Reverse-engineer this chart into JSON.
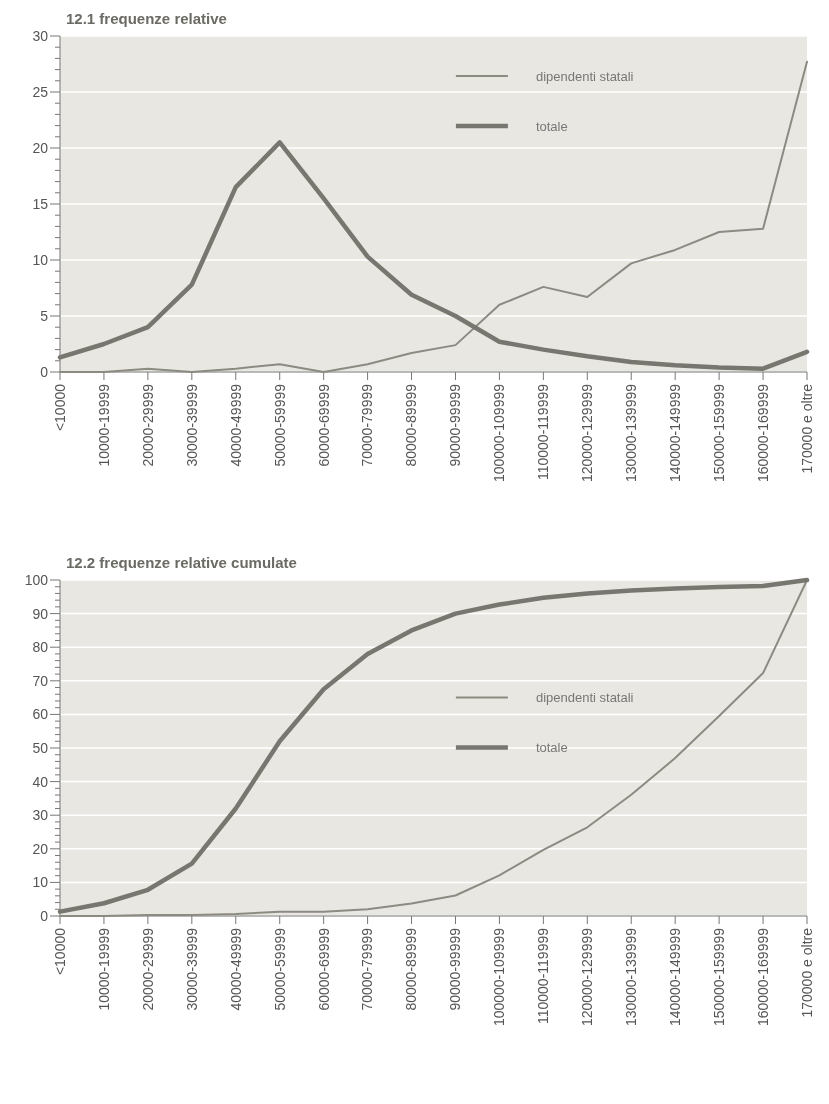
{
  "chart_data": [
    {
      "type": "line",
      "title": "12.1 frequenze relative",
      "categories": [
        "<10000",
        "10000-19999",
        "20000-29999",
        "30000-39999",
        "40000-49999",
        "50000-59999",
        "60000-69999",
        "70000-79999",
        "80000-89999",
        "90000-99999",
        "100000-109999",
        "110000-119999",
        "120000-129999",
        "130000-139999",
        "140000-149999",
        "150000-159999",
        "160000-169999",
        "170000 e oltre"
      ],
      "series": [
        {
          "name": "dipendenti statali",
          "color": "#8c8b82",
          "values": [
            0,
            0,
            0.3,
            0,
            0.3,
            0.7,
            0,
            0.7,
            1.7,
            2.4,
            6,
            7.6,
            6.7,
            9.7,
            10.9,
            12.5,
            12.8,
            27.7
          ]
        },
        {
          "name": "totale",
          "color": "#77766f",
          "values": [
            1.3,
            2.5,
            4,
            7.8,
            16.5,
            20.5,
            15.5,
            10.3,
            6.9,
            5,
            2.7,
            2,
            1.4,
            0.9,
            0.6,
            0.4,
            0.3,
            1.8
          ]
        }
      ],
      "ylim": [
        0,
        30
      ],
      "yticks": [
        0,
        {
          "value": 1,
          "label": null
        },
        {
          "value": 2,
          "label": null
        },
        {
          "value": 3,
          "label": null
        },
        {
          "value": 4,
          "label": null
        },
        5,
        {
          "value": 6,
          "label": null
        },
        {
          "value": 7,
          "label": null
        },
        {
          "value": 8,
          "label": null
        },
        {
          "value": 9,
          "label": null
        },
        10,
        {
          "value": 11,
          "label": null
        },
        {
          "value": 12,
          "label": null
        },
        {
          "value": 13,
          "label": null
        },
        {
          "value": 14,
          "label": null
        },
        15,
        {
          "value": 16,
          "label": null
        },
        {
          "value": 17,
          "label": null
        },
        {
          "value": 18,
          "label": null
        },
        {
          "value": 19,
          "label": null
        },
        20,
        {
          "value": 21,
          "label": null
        },
        {
          "value": 22,
          "label": null
        },
        {
          "value": 23,
          "label": null
        },
        {
          "value": 24,
          "label": null
        },
        25,
        {
          "value": 26,
          "label": null
        },
        {
          "value": 27,
          "label": null
        },
        {
          "value": 28,
          "label": null
        },
        {
          "value": 29,
          "label": null
        },
        30
      ],
      "grid": "y",
      "legend": "top right",
      "marker": "none"
    },
    {
      "type": "line",
      "title": "12.2 frequenze relative cumulate",
      "categories": [
        "<10000",
        "10000-19999",
        "20000-29999",
        "30000-39999",
        "40000-49999",
        "50000-59999",
        "60000-69999",
        "70000-79999",
        "80000-89999",
        "90000-99999",
        "100000-109999",
        "110000-119999",
        "120000-129999",
        "130000-139999",
        "140000-149999",
        "150000-159999",
        "160000-169999",
        "170000 e oltre"
      ],
      "series": [
        {
          "name": "dipendenti statali",
          "color": "#8c8b82",
          "values": [
            0,
            0,
            0.3,
            0.3,
            0.6,
            1.3,
            1.3,
            2,
            3.7,
            6.1,
            12.1,
            19.7,
            26.4,
            36.1,
            47,
            59.5,
            72.3,
            100
          ]
        },
        {
          "name": "totale",
          "color": "#77766f",
          "values": [
            1.3,
            3.8,
            7.8,
            15.6,
            32,
            52,
            67.5,
            78,
            85,
            90,
            92.7,
            94.7,
            96,
            96.9,
            97.5,
            97.9,
            98.2,
            100
          ]
        }
      ],
      "ylim": [
        0,
        100
      ],
      "yticks": [
        0,
        {
          "value": 2,
          "label": null
        },
        {
          "value": 4,
          "label": null
        },
        {
          "value": 6,
          "label": null
        },
        {
          "value": 8,
          "label": null
        },
        10,
        {
          "value": 12,
          "label": null
        },
        {
          "value": 14,
          "label": null
        },
        {
          "value": 16,
          "label": null
        },
        {
          "value": 18,
          "label": null
        },
        20,
        {
          "value": 22,
          "label": null
        },
        {
          "value": 24,
          "label": null
        },
        {
          "value": 26,
          "label": null
        },
        {
          "value": 28,
          "label": null
        },
        30,
        {
          "value": 32,
          "label": null
        },
        {
          "value": 34,
          "label": null
        },
        {
          "value": 36,
          "label": null
        },
        {
          "value": 38,
          "label": null
        },
        40,
        {
          "value": 42,
          "label": null
        },
        {
          "value": 44,
          "label": null
        },
        {
          "value": 46,
          "label": null
        },
        {
          "value": 48,
          "label": null
        },
        50,
        {
          "value": 52,
          "label": null
        },
        {
          "value": 54,
          "label": null
        },
        {
          "value": 56,
          "label": null
        },
        {
          "value": 58,
          "label": null
        },
        60,
        {
          "value": 62,
          "label": null
        },
        {
          "value": 64,
          "label": null
        },
        {
          "value": 66,
          "label": null
        },
        {
          "value": 68,
          "label": null
        },
        70,
        {
          "value": 72,
          "label": null
        },
        {
          "value": 74,
          "label": null
        },
        {
          "value": 76,
          "label": null
        },
        {
          "value": 78,
          "label": null
        },
        80,
        {
          "value": 82,
          "label": null
        },
        {
          "value": 84,
          "label": null
        },
        {
          "value": 86,
          "label": null
        },
        {
          "value": 88,
          "label": null
        },
        90,
        {
          "value": 92,
          "label": null
        },
        {
          "value": 94,
          "label": null
        },
        {
          "value": 96,
          "label": null
        },
        {
          "value": 98,
          "label": null
        },
        100
      ],
      "grid": "y",
      "legend": "right",
      "marker": "none"
    }
  ]
}
